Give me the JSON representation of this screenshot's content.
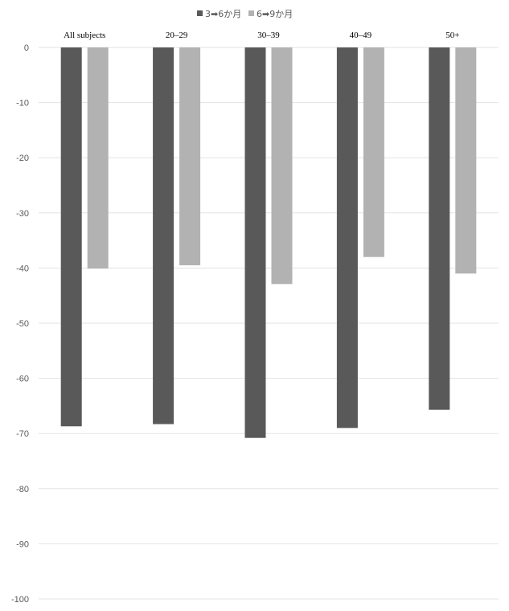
{
  "chart_data": {
    "type": "bar",
    "categories": [
      "All subjects",
      "20–29",
      "30–39",
      "40–49",
      "50+"
    ],
    "series": [
      {
        "name": "3➡6か月",
        "color": "#595959",
        "values": [
          -68.7,
          -68.3,
          -70.8,
          -69.0,
          -65.7
        ]
      },
      {
        "name": "6➡9か月",
        "color": "#b2b2b2",
        "values": [
          -40.1,
          -39.5,
          -42.9,
          -38.0,
          -41.0
        ]
      }
    ],
    "ylim": [
      -100,
      0
    ],
    "yticks": [
      0,
      -10,
      -20,
      -30,
      -40,
      -50,
      -60,
      -70,
      -80,
      -90,
      -100
    ],
    "grid": true,
    "legend_position": "top",
    "category_labels_position": "top",
    "gridline_color": "#e3e3e3"
  }
}
